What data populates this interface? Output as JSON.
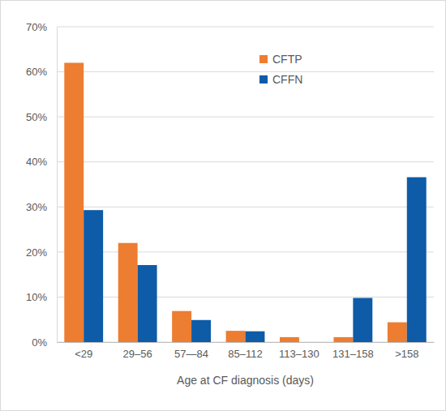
{
  "chart_data": {
    "type": "bar",
    "x_label": "Age at CF diagnosis (days)",
    "categories": [
      "<29",
      "29–56",
      "57—84",
      "85–112",
      "113–130",
      "131–158",
      ">158"
    ],
    "series": [
      {
        "name": "CFTP",
        "color": "#ED7D31",
        "values": [
          62.0,
          22.0,
          6.9,
          2.5,
          1.1,
          1.1,
          4.4
        ]
      },
      {
        "name": "CFFN",
        "color": "#0E5BA8",
        "values": [
          29.3,
          17.1,
          4.9,
          2.4,
          0,
          9.8,
          36.6
        ]
      }
    ],
    "ylim": [
      0,
      70
    ],
    "yticks": [
      {
        "value": 0,
        "label": "0%"
      },
      {
        "value": 10,
        "label": "10%"
      },
      {
        "value": 20,
        "label": "20%"
      },
      {
        "value": 30,
        "label": "30%"
      },
      {
        "value": 40,
        "label": "40%"
      },
      {
        "value": 50,
        "label": "50%"
      },
      {
        "value": 60,
        "label": "60%"
      },
      {
        "value": 70,
        "label": "70%"
      }
    ],
    "grid": true,
    "legend": "top"
  }
}
